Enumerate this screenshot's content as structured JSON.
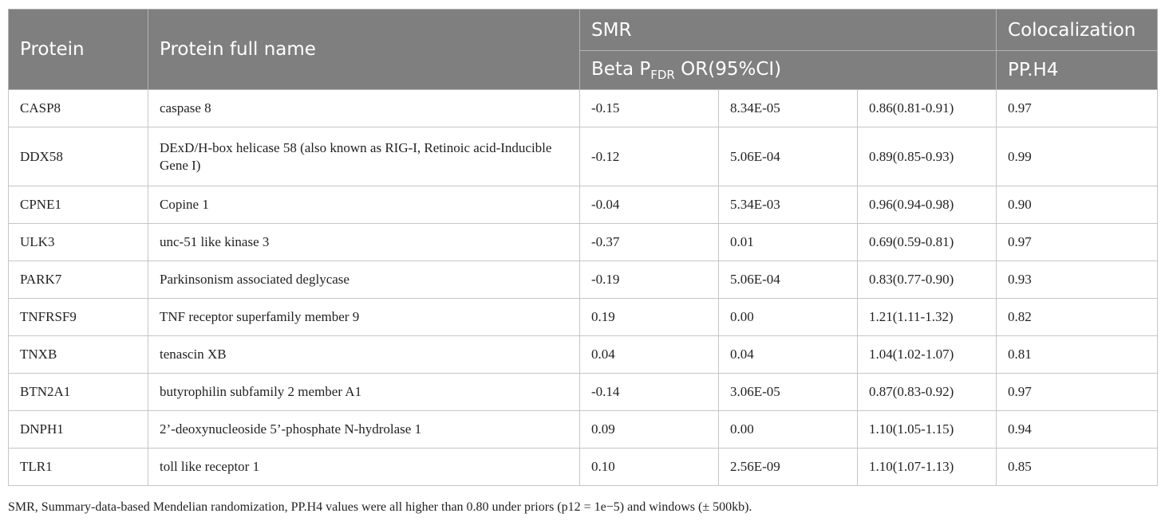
{
  "header": {
    "protein": "Protein",
    "protein_full_name": "Protein full name",
    "smr": "SMR",
    "colocalization": "Colocalization",
    "smr_sub_beta": "Beta P",
    "smr_sub_fdr": "FDR",
    "smr_sub_or": " OR(95%CI)",
    "pph4": "PP.H4"
  },
  "rows": [
    {
      "protein": "CASP8",
      "name": "caspase 8",
      "beta": "-0.15",
      "pfdr": "8.34E-05",
      "or": "0.86(0.81-0.91)",
      "pph4": "0.97"
    },
    {
      "protein": "DDX58",
      "name": "DExD/H-box helicase 58 (also known as RIG-I, Retinoic acid-Inducible Gene I)",
      "beta": "-0.12",
      "pfdr": "5.06E-04",
      "or": "0.89(0.85-0.93)",
      "pph4": "0.99"
    },
    {
      "protein": "CPNE1",
      "name": "Copine 1",
      "beta": "-0.04",
      "pfdr": "5.34E-03",
      "or": "0.96(0.94-0.98)",
      "pph4": "0.90"
    },
    {
      "protein": "ULK3",
      "name": "unc-51 like kinase 3",
      "beta": "-0.37",
      "pfdr": "0.01",
      "or": "0.69(0.59-0.81)",
      "pph4": "0.97"
    },
    {
      "protein": "PARK7",
      "name": "Parkinsonism associated deglycase",
      "beta": "-0.19",
      "pfdr": "5.06E-04",
      "or": "0.83(0.77-0.90)",
      "pph4": "0.93"
    },
    {
      "protein": "TNFRSF9",
      "name": "TNF receptor superfamily member 9",
      "beta": "0.19",
      "pfdr": "0.00",
      "or": "1.21(1.11-1.32)",
      "pph4": "0.82"
    },
    {
      "protein": "TNXB",
      "name": "tenascin XB",
      "beta": "0.04",
      "pfdr": "0.04",
      "or": "1.04(1.02-1.07)",
      "pph4": "0.81"
    },
    {
      "protein": "BTN2A1",
      "name": "butyrophilin subfamily 2 member A1",
      "beta": "-0.14",
      "pfdr": "3.06E-05",
      "or": "0.87(0.83-0.92)",
      "pph4": "0.97"
    },
    {
      "protein": "DNPH1",
      "name": "2’-deoxynucleoside 5’-phosphate N-hydrolase 1",
      "beta": "0.09",
      "pfdr": "0.00",
      "or": "1.10(1.05-1.15)",
      "pph4": "0.94"
    },
    {
      "protein": "TLR1",
      "name": "toll like receptor 1",
      "beta": "0.10",
      "pfdr": "2.56E-09",
      "or": "1.10(1.07-1.13)",
      "pph4": "0.85"
    }
  ],
  "footnote": "SMR, Summary-data-based Mendelian randomization, PP.H4 values were all higher than 0.80 under priors (p12 = 1e−5) and windows (± 500kb)."
}
